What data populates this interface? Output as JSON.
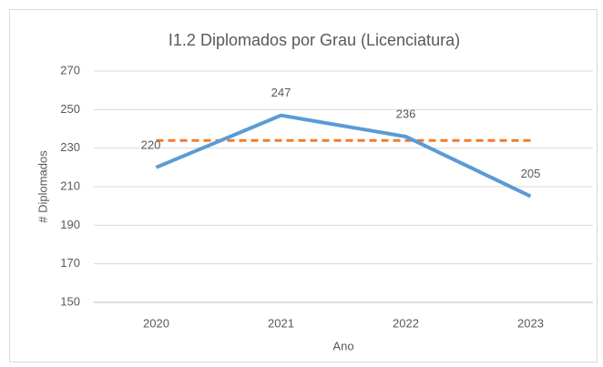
{
  "chart_data": {
    "type": "line",
    "title": "I1.2 Diplomados por Grau (Licenciatura)",
    "x_label": "Ano",
    "y_label": "# Diplomados",
    "categories": [
      "2020",
      "2021",
      "2022",
      "2023"
    ],
    "series": [
      {
        "color": "#5b9bd5",
        "values": [
          220,
          247,
          236,
          205
        ],
        "value_labels": [
          "220",
          "247",
          "236",
          "205"
        ],
        "data_labels": true
      },
      {
        "color": "#ed7d31",
        "values": [
          234,
          234,
          234,
          234
        ],
        "dashed": true
      }
    ],
    "ylim": [
      150,
      270
    ],
    "yticks": [
      150,
      170,
      190,
      210,
      230,
      250,
      270
    ],
    "grid": true
  }
}
